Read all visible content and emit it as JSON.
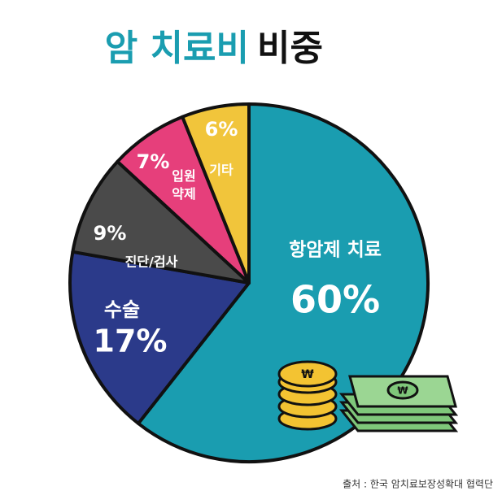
{
  "chart_data": {
    "type": "pie",
    "title": [
      "암 치료비",
      "비중"
    ],
    "categories": [
      "항암제 치료",
      "수술",
      "진단/검사",
      "입원 약제",
      "기타"
    ],
    "values": [
      60,
      17,
      9,
      7,
      6
    ],
    "value_labels": [
      "60%",
      "17%",
      "9%",
      "7%",
      "6%"
    ],
    "colors": [
      "#1a9db0",
      "#2b3a8a",
      "#4a4a4a",
      "#e63f7b",
      "#f1c53b"
    ],
    "source": "출처 : 한국 암치료보장성확대 협력단"
  }
}
